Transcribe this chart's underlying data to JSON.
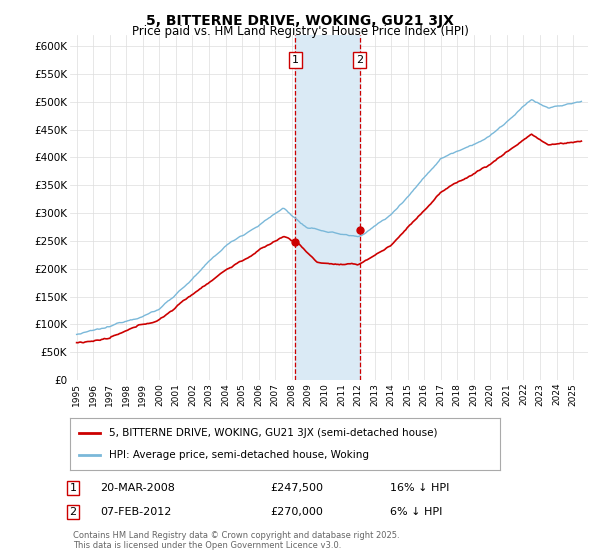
{
  "title": "5, BITTERNE DRIVE, WOKING, GU21 3JX",
  "subtitle": "Price paid vs. HM Land Registry's House Price Index (HPI)",
  "legend_property": "5, BITTERNE DRIVE, WOKING, GU21 3JX (semi-detached house)",
  "legend_hpi": "HPI: Average price, semi-detached house, Woking",
  "transaction1_date": "20-MAR-2008",
  "transaction1_price": 247500,
  "transaction1_label": "16% ↓ HPI",
  "transaction1_year": 2008.21,
  "transaction2_date": "07-FEB-2012",
  "transaction2_price": 270000,
  "transaction2_label": "6% ↓ HPI",
  "transaction2_year": 2012.1,
  "footer": "Contains HM Land Registry data © Crown copyright and database right 2025.\nThis data is licensed under the Open Government Licence v3.0.",
  "property_color": "#cc0000",
  "hpi_color": "#7ab8d9",
  "shade_color": "#daeaf5",
  "transaction_line_color": "#cc0000",
  "ylim_max": 620000,
  "ylim_min": 0,
  "xlim_min": 1994.6,
  "xlim_max": 2025.9
}
